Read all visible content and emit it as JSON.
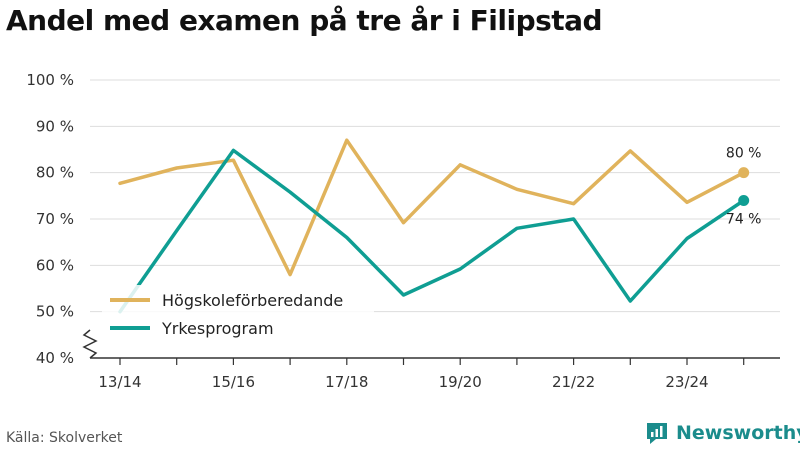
{
  "title": "Andel med examen på tre år i Filipstad",
  "source": "Källa: Skolverket",
  "brand": {
    "name": "Newsworthy",
    "icon": "newsworthy-logo-icon"
  },
  "colors": {
    "series1": "#e0b35c",
    "series2": "#0f9e93",
    "grid": "#dddddd",
    "axis": "#333333"
  },
  "chart_data": {
    "type": "line",
    "x": [
      "13/14",
      "14/15",
      "15/16",
      "16/17",
      "17/18",
      "18/19",
      "19/20",
      "20/21",
      "21/22",
      "22/23",
      "23/24",
      "24/25"
    ],
    "x_tick_labels": [
      "13/14",
      "15/16",
      "17/18",
      "19/20",
      "21/22",
      "23/24"
    ],
    "y_tick_labels": [
      "40 %",
      "50 %",
      "60 %",
      "70 %",
      "80 %",
      "90 %",
      "100 %"
    ],
    "ylim": [
      40,
      100
    ],
    "y_axis_break": true,
    "grid": true,
    "legend_position": "bottom-left",
    "series": [
      {
        "name": "Högskoleförberedande",
        "values": [
          77.7,
          81.0,
          82.7,
          58.0,
          87.0,
          69.2,
          81.7,
          76.4,
          73.3,
          84.7,
          73.6,
          80.0
        ],
        "end_label": "80 %"
      },
      {
        "name": "Yrkesprogram",
        "values": [
          50.0,
          67.5,
          84.8,
          75.8,
          66.0,
          53.6,
          59.2,
          68.0,
          70.0,
          52.3,
          65.8,
          74.0
        ],
        "end_label": "74 %"
      }
    ]
  }
}
